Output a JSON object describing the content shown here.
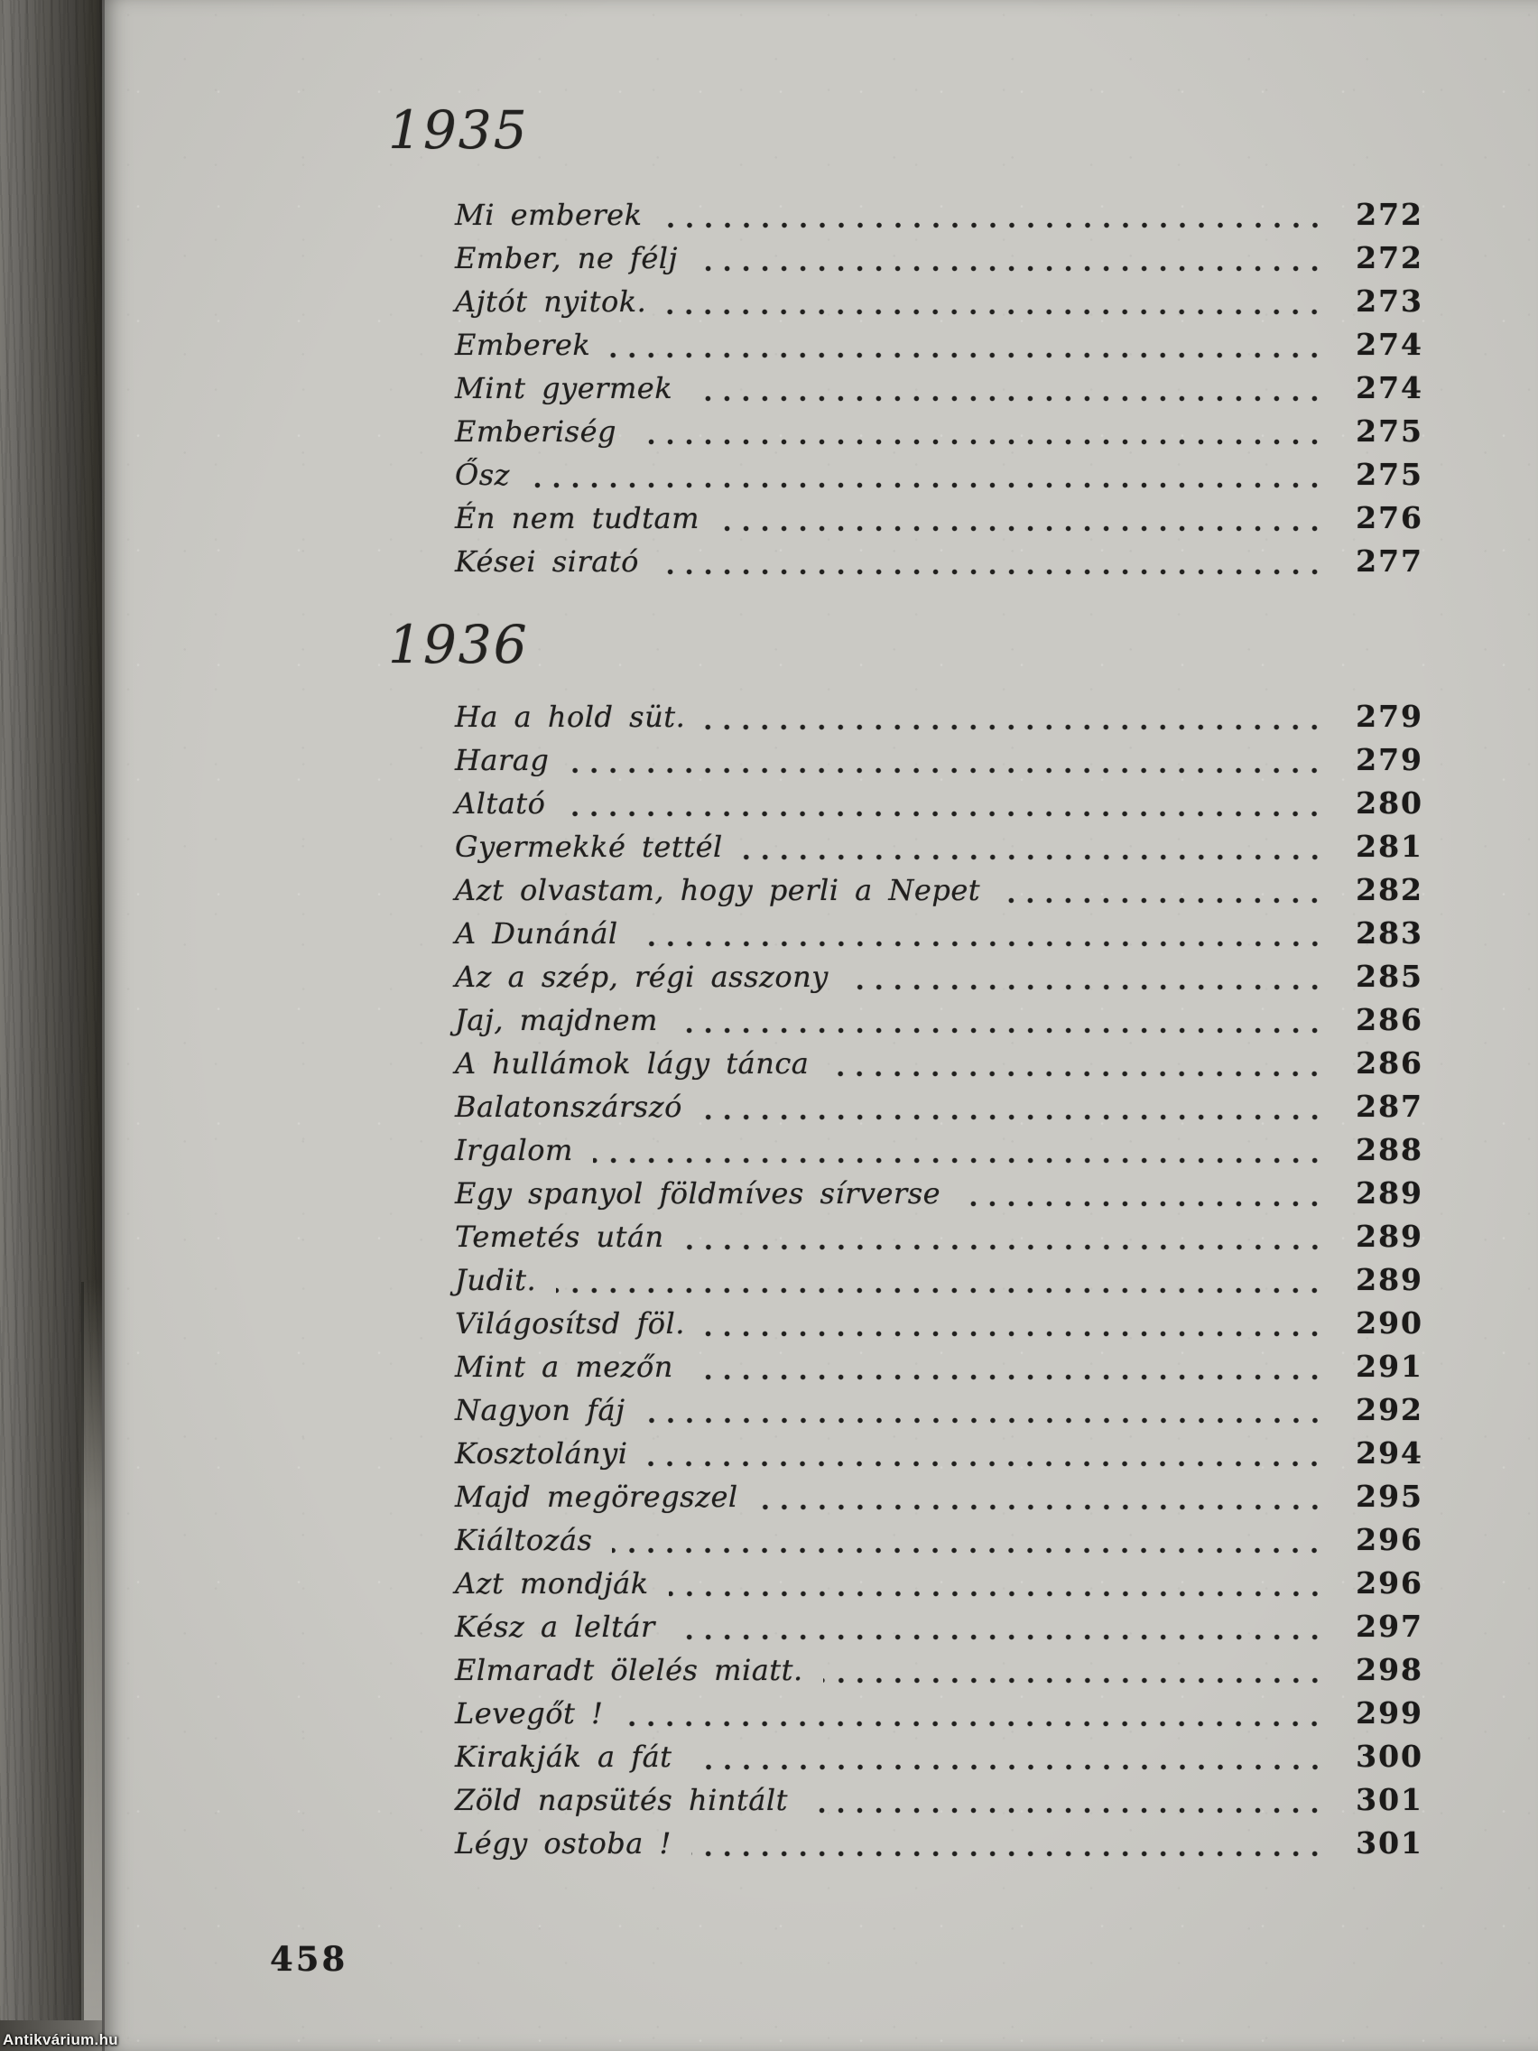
{
  "page": {
    "watermark": "Antikvárium.hu",
    "page_number": "458"
  },
  "colors": {
    "paper": "#cac9c4",
    "ink": "#201f1e",
    "gutter_dark": "#2c2a26"
  },
  "sections": [
    {
      "year": "1935",
      "entries": [
        {
          "title": "Mi emberek",
          "page": "272"
        },
        {
          "title": "Ember, ne félj",
          "page": "272"
        },
        {
          "title": "Ajtót nyitok.",
          "page": "273"
        },
        {
          "title": "Emberek",
          "page": "274"
        },
        {
          "title": "Mint gyermek",
          "page": "274"
        },
        {
          "title": "Emberiség",
          "page": "275"
        },
        {
          "title": "Ősz",
          "page": "275"
        },
        {
          "title": "Én nem tudtam",
          "page": "276"
        },
        {
          "title": "Kései sirató",
          "page": "277"
        }
      ]
    },
    {
      "year": "1936",
      "entries": [
        {
          "title": "Ha a hold süt.",
          "page": "279"
        },
        {
          "title": "Harag",
          "page": "279"
        },
        {
          "title": "Altató",
          "page": "280"
        },
        {
          "title": "Gyermekké tettél",
          "page": "281"
        },
        {
          "title": "Azt olvastam, hogy perli a Nepet",
          "page": "282"
        },
        {
          "title": "A Dunánál",
          "page": "283"
        },
        {
          "title": "Az a szép, régi asszony",
          "page": "285"
        },
        {
          "title": "Jaj, majdnem",
          "page": "286"
        },
        {
          "title": "A hullámok lágy tánca",
          "page": "286"
        },
        {
          "title": "Balatonszárszó",
          "page": "287"
        },
        {
          "title": "Irgalom",
          "page": "288"
        },
        {
          "title": "Egy spanyol földmíves sírverse",
          "page": "289"
        },
        {
          "title": "Temetés után",
          "page": "289"
        },
        {
          "title": "Judit.",
          "page": "289"
        },
        {
          "title": "Világosítsd föl.",
          "page": "290"
        },
        {
          "title": "Mint a mezőn",
          "page": "291"
        },
        {
          "title": "Nagyon fáj",
          "page": "292"
        },
        {
          "title": "Kosztolányi",
          "page": "294"
        },
        {
          "title": "Majd megöregszel",
          "page": "295"
        },
        {
          "title": "Kiáltozás",
          "page": "296"
        },
        {
          "title": "Azt mondják",
          "page": "296"
        },
        {
          "title": "Kész a leltár",
          "page": "297"
        },
        {
          "title": "Elmaradt ölelés miatt.",
          "page": "298"
        },
        {
          "title": "Levegőt !",
          "page": "299"
        },
        {
          "title": "Kirakják a fát",
          "page": "300"
        },
        {
          "title": "Zöld napsütés hintált",
          "page": "301"
        },
        {
          "title": "Légy ostoba !",
          "page": "301"
        }
      ]
    }
  ]
}
